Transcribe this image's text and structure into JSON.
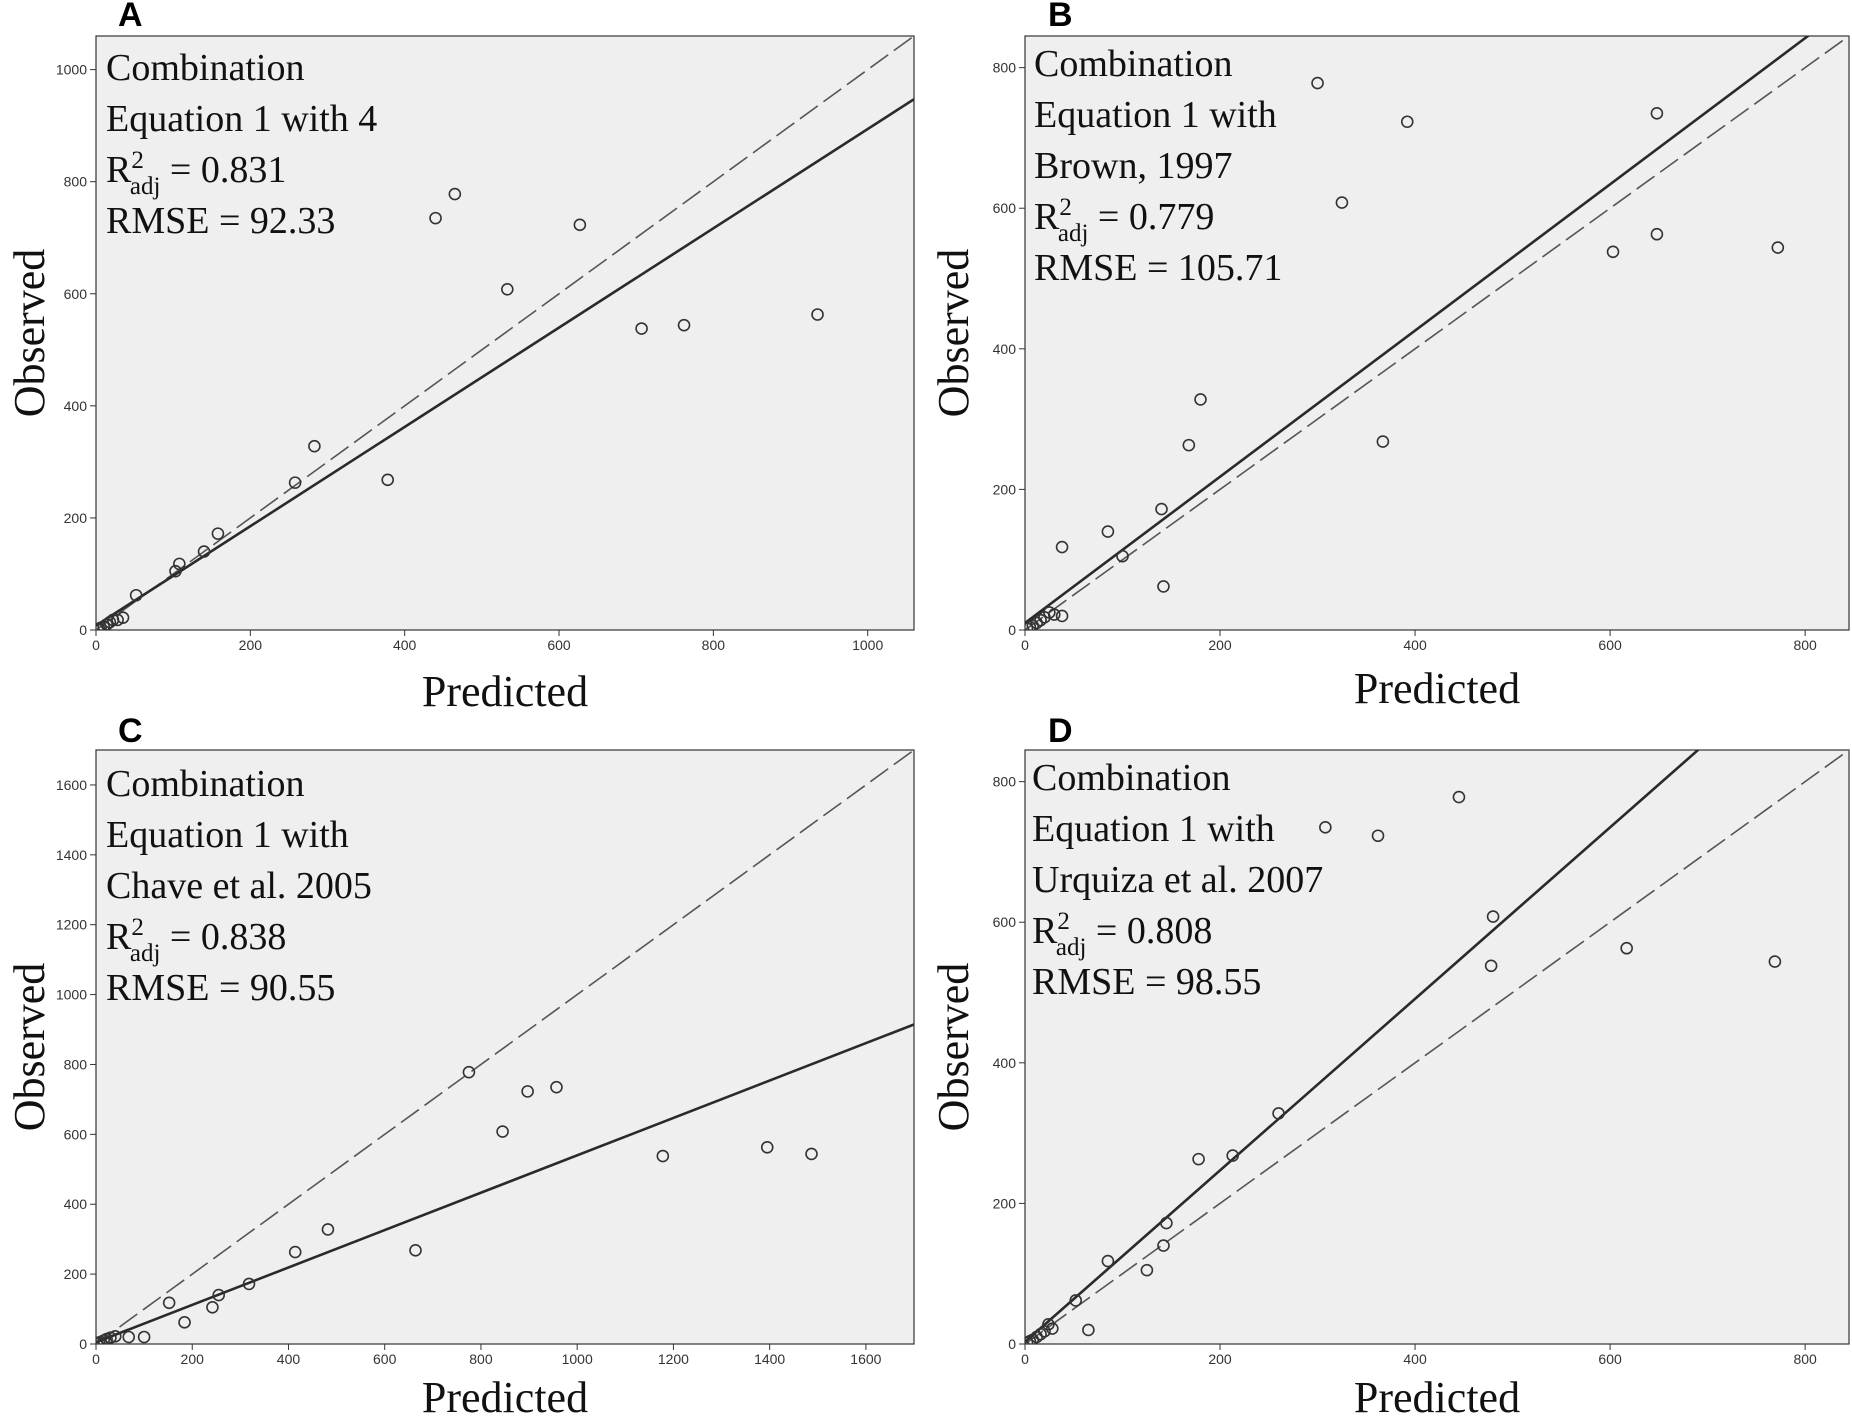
{
  "chart_data": [
    {
      "panel": "A",
      "type": "scatter",
      "annotation": {
        "line1": "Combination",
        "line2": "Equation 1 with 4",
        "line3": "",
        "r2_value": "= 0.831",
        "rmse": "RMSE = 92.33"
      },
      "xlabel": "Predicted",
      "ylabel": "Observed",
      "xlim": [
        0,
        1060
      ],
      "ylim": [
        0,
        1060
      ],
      "xticks": [
        "0",
        "200",
        "400",
        "600",
        "800",
        "1000"
      ],
      "yticks": [
        "0",
        "200",
        "400",
        "600",
        "800",
        "1000"
      ],
      "points": [
        [
          440,
          735
        ],
        [
          465,
          778
        ],
        [
          627,
          723
        ],
        [
          533,
          608
        ],
        [
          707,
          538
        ],
        [
          762,
          544
        ],
        [
          935,
          563
        ],
        [
          283,
          328
        ],
        [
          258,
          263
        ],
        [
          378,
          268
        ],
        [
          158,
          172
        ],
        [
          140,
          140
        ],
        [
          108,
          118
        ],
        [
          103,
          105
        ],
        [
          52,
          62
        ],
        [
          35,
          22
        ],
        [
          28,
          18
        ],
        [
          22,
          18
        ],
        [
          18,
          14
        ],
        [
          14,
          10
        ],
        [
          10,
          6
        ],
        [
          6,
          4
        ],
        [
          4,
          2
        ],
        [
          2,
          1
        ]
      ],
      "fit_line": {
        "intercept": 8,
        "slope": 0.886
      },
      "reference_line": "1:1"
    },
    {
      "panel": "B",
      "type": "scatter",
      "annotation": {
        "line1": "Combination",
        "line2": "Equation 1 with",
        "line3": "Brown, 1997",
        "r2_value": "= 0.779",
        "rmse": "RMSE = 105.71"
      },
      "xlabel": "Predicted",
      "ylabel": "Observed",
      "xlim": [
        0,
        845
      ],
      "ylim": [
        0,
        845
      ],
      "xticks": [
        "0",
        "200",
        "400",
        "600",
        "800"
      ],
      "yticks": [
        "0",
        "200",
        "400",
        "600",
        "800"
      ],
      "points": [
        [
          300,
          778
        ],
        [
          392,
          723
        ],
        [
          648,
          735
        ],
        [
          325,
          608
        ],
        [
          603,
          538
        ],
        [
          648,
          563
        ],
        [
          772,
          544
        ],
        [
          180,
          328
        ],
        [
          168,
          263
        ],
        [
          367,
          268
        ],
        [
          140,
          172
        ],
        [
          85,
          140
        ],
        [
          38,
          118
        ],
        [
          100,
          105
        ],
        [
          142,
          62
        ],
        [
          38,
          20
        ],
        [
          30,
          22
        ],
        [
          25,
          25
        ],
        [
          20,
          18
        ],
        [
          16,
          14
        ],
        [
          12,
          10
        ],
        [
          8,
          6
        ],
        [
          5,
          4
        ],
        [
          2,
          2
        ]
      ],
      "fit_line": {
        "intercept": 10,
        "slope": 1.04
      },
      "reference_line": "1:1"
    },
    {
      "panel": "C",
      "type": "scatter",
      "annotation": {
        "line1": "Combination",
        "line2": "Equation 1 with",
        "line3": "Chave et al. 2005",
        "r2_value": "= 0.838",
        "rmse": "RMSE = 90.55"
      },
      "xlabel": "Predicted",
      "ylabel": "Observed",
      "xlim": [
        0,
        1700
      ],
      "ylim": [
        0,
        1700
      ],
      "xticks": [
        "0",
        "200",
        "400",
        "600",
        "800",
        "1000",
        "1200",
        "1400",
        "1600"
      ],
      "yticks": [
        "0",
        "200",
        "400",
        "600",
        "800",
        "1000",
        "1200",
        "1400",
        "1600"
      ],
      "points": [
        [
          775,
          778
        ],
        [
          897,
          723
        ],
        [
          957,
          735
        ],
        [
          845,
          608
        ],
        [
          1178,
          538
        ],
        [
          1395,
          563
        ],
        [
          1487,
          544
        ],
        [
          482,
          328
        ],
        [
          414,
          263
        ],
        [
          664,
          268
        ],
        [
          318,
          172
        ],
        [
          255,
          140
        ],
        [
          242,
          105
        ],
        [
          152,
          118
        ],
        [
          184,
          62
        ],
        [
          68,
          20
        ],
        [
          100,
          20
        ],
        [
          40,
          22
        ],
        [
          30,
          18
        ],
        [
          22,
          14
        ],
        [
          16,
          10
        ],
        [
          10,
          6
        ],
        [
          6,
          4
        ],
        [
          2,
          2
        ]
      ],
      "fit_line": {
        "intercept": 5,
        "slope": 0.535
      },
      "reference_line": "1:1"
    },
    {
      "panel": "D",
      "type": "scatter",
      "annotation": {
        "line1": "Combination",
        "line2": "Equation 1 with",
        "line3": "Urquiza et al. 2007",
        "r2_value": "= 0.808",
        "rmse": "RMSE = 98.55"
      },
      "xlabel": "Predicted",
      "ylabel": "Observed",
      "xlim": [
        0,
        845
      ],
      "ylim": [
        0,
        845
      ],
      "xticks": [
        "0",
        "200",
        "400",
        "600",
        "800"
      ],
      "yticks": [
        "0",
        "200",
        "400",
        "600",
        "800"
      ],
      "points": [
        [
          445,
          778
        ],
        [
          308,
          735
        ],
        [
          362,
          723
        ],
        [
          480,
          608
        ],
        [
          478,
          538
        ],
        [
          617,
          563
        ],
        [
          769,
          544
        ],
        [
          260,
          328
        ],
        [
          178,
          263
        ],
        [
          213,
          268
        ],
        [
          145,
          172
        ],
        [
          142,
          140
        ],
        [
          85,
          118
        ],
        [
          125,
          105
        ],
        [
          52,
          62
        ],
        [
          65,
          20
        ],
        [
          28,
          22
        ],
        [
          24,
          28
        ],
        [
          20,
          18
        ],
        [
          16,
          14
        ],
        [
          12,
          10
        ],
        [
          8,
          6
        ],
        [
          5,
          4
        ],
        [
          2,
          2
        ]
      ],
      "fit_line": {
        "intercept": 3,
        "slope": 1.22
      },
      "reference_line": "1:1"
    }
  ],
  "r2_prefix": "R",
  "r2_sup": "2",
  "r2_sub": "adj",
  "colors": {
    "plot_background": "#efefef",
    "marker": "#333333",
    "fit_line": "#2a2a2a",
    "reference_line": "#555555"
  }
}
